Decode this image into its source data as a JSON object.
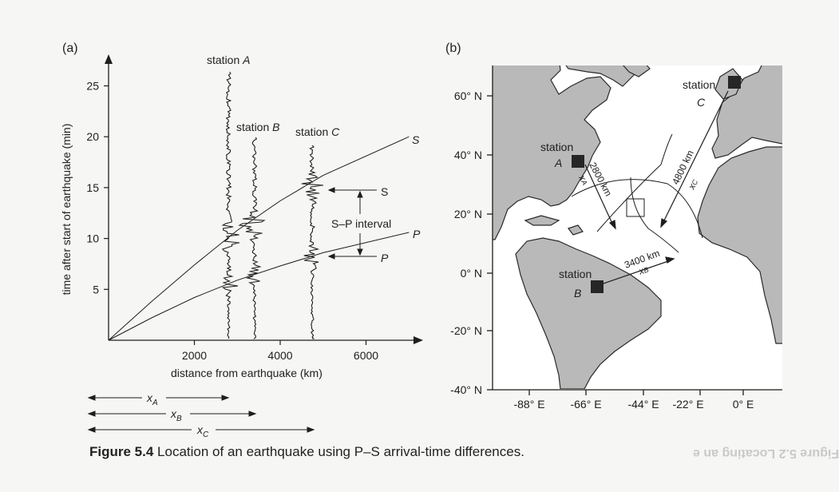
{
  "caption": {
    "label": "Figure 5.4",
    "text": "Location of an earthquake using P–S arrival-time differences."
  },
  "bleed_text": "Figure 5.2 Locating an e",
  "panel_a": {
    "label": "(a)",
    "xlabel": "distance from earthquake (km)",
    "ylabel": "time after start of earthquake (min)",
    "x_ticks": [
      "2000",
      "4000",
      "6000"
    ],
    "y_ticks": [
      "5",
      "10",
      "15",
      "20",
      "25"
    ],
    "stations": [
      {
        "name": "station A",
        "prefix": "station ",
        "letter": "A"
      },
      {
        "name": "station B",
        "prefix": "station ",
        "letter": "B"
      },
      {
        "name": "station C",
        "prefix": "station ",
        "letter": "C"
      }
    ],
    "curve_labels": {
      "S": "S",
      "P": "P"
    },
    "annotation": {
      "s": "S",
      "interval": "S–P interval",
      "p": "P"
    },
    "distance_labels": [
      {
        "main": "x",
        "sub": "A"
      },
      {
        "main": "x",
        "sub": "B"
      },
      {
        "main": "x",
        "sub": "C"
      }
    ]
  },
  "chart_data": {
    "type": "line",
    "title": "",
    "xlabel": "distance from earthquake (km)",
    "ylabel": "time after start of earthquake (min)",
    "xlim": [
      0,
      7000
    ],
    "ylim": [
      0,
      27
    ],
    "grid": false,
    "series": [
      {
        "name": "S",
        "x": [
          0,
          1000,
          2000,
          3000,
          4000,
          5000,
          7000
        ],
        "y": [
          0,
          3.8,
          7.4,
          10.8,
          13.7,
          16.2,
          20
        ]
      },
      {
        "name": "P",
        "x": [
          0,
          1000,
          2000,
          3000,
          4000,
          5000,
          7000
        ],
        "y": [
          0,
          2.2,
          4.2,
          5.9,
          7.3,
          8.6,
          10.6
        ]
      }
    ],
    "seismograms": [
      {
        "station": "A",
        "distance": 2800,
        "p_arrival": 5.5,
        "s_arrival": 10.2,
        "trace_top": 26.5
      },
      {
        "station": "B",
        "distance": 3400,
        "p_arrival": 6.6,
        "s_arrival": 11.4,
        "trace_top": 20
      },
      {
        "station": "C",
        "distance": 4750,
        "p_arrival": 8.2,
        "s_arrival": 15.0,
        "trace_top": 19.3
      }
    ]
  },
  "panel_b": {
    "label": "(b)",
    "lat_labels": [
      "60° N",
      "40° N",
      "20° N",
      "0° N",
      "-20° N",
      "-40° N"
    ],
    "lon_labels": [
      "-88° E",
      "-66° E",
      "-44° E",
      "-22° E",
      "0° E"
    ],
    "stations": [
      {
        "prefix": "station",
        "letter": "A"
      },
      {
        "prefix": "station",
        "letter": "B"
      },
      {
        "prefix": "station",
        "letter": "C"
      }
    ],
    "distances": [
      {
        "text": "2800 km",
        "x_main": "x",
        "x_sub": "A"
      },
      {
        "text": "3400 km",
        "x_main": "x",
        "x_sub": "B"
      },
      {
        "text": "4800 km",
        "x_main": "x",
        "x_sub": "C"
      }
    ],
    "colors": {
      "land": "#b9b9b9",
      "ocean": "#ffffff",
      "coast": "#2a2a2a",
      "marker": "#262626"
    }
  }
}
